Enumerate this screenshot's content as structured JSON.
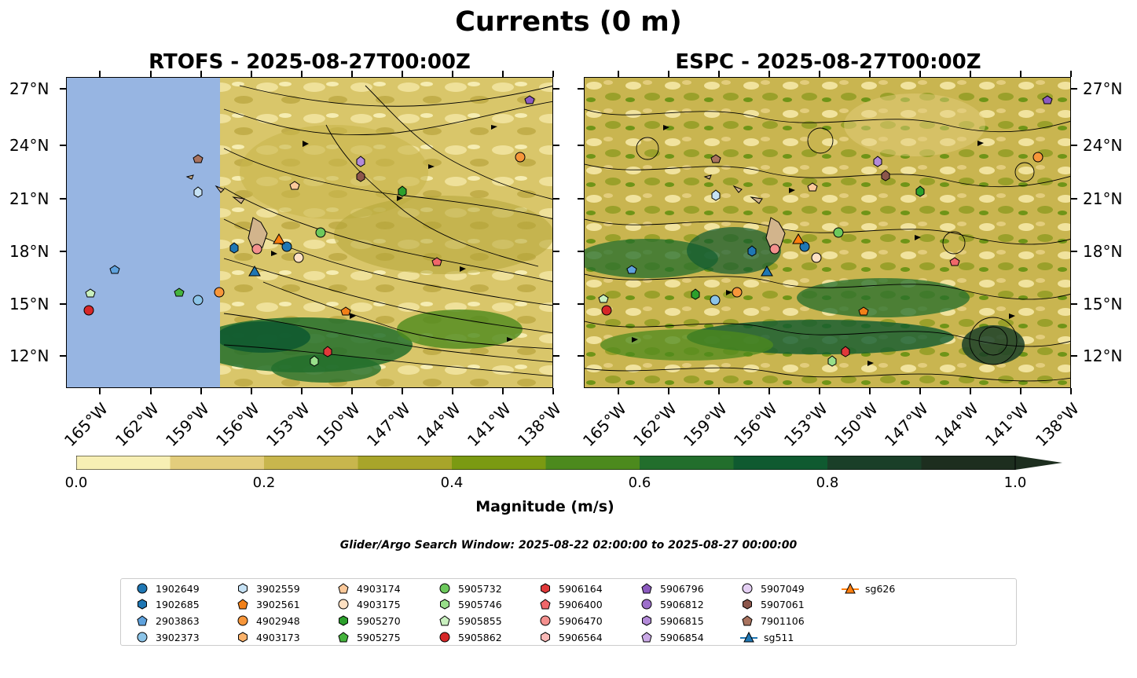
{
  "title": "Currents (0 m)",
  "panels": {
    "left_title": "RTOFS - 2025-08-27T00:00Z",
    "right_title": "ESPC - 2025-08-27T00:00Z"
  },
  "axes": {
    "lat_labels": [
      "27°N",
      "24°N",
      "21°N",
      "18°N",
      "15°N",
      "12°N"
    ],
    "lon_labels": [
      "165°W",
      "162°W",
      "159°W",
      "156°W",
      "153°W",
      "150°W",
      "147°W",
      "144°W",
      "141°W",
      "138°W"
    ]
  },
  "colorbar": {
    "label": "Magnitude (m/s)",
    "ticks": [
      "0.0",
      "0.2",
      "0.4",
      "0.6",
      "0.8",
      "1.0"
    ],
    "colors": [
      "#f7efb4",
      "#e3cd7c",
      "#c8b64d",
      "#a8a52a",
      "#7b9a12",
      "#4c8a1d",
      "#226e2c",
      "#0f5a30",
      "#1a3f28",
      "#1d2e1f"
    ]
  },
  "land_color": "#d2b48c",
  "ocean_masked_color": "#97b5e2",
  "search_window": "Glider/Argo Search Window: 2025-08-22 02:00:00 to 2025-08-27 00:00:00",
  "legend": [
    {
      "label": "1902649",
      "shape": "circle",
      "color": "#1f77b4"
    },
    {
      "label": "1902685",
      "shape": "hexagon",
      "color": "#1f77b4"
    },
    {
      "label": "2903863",
      "shape": "pentagon",
      "color": "#5fa2dd"
    },
    {
      "label": "3902373",
      "shape": "circle",
      "color": "#8cc4e8"
    },
    {
      "label": "3902559",
      "shape": "hexagon",
      "color": "#c6e2f5"
    },
    {
      "label": "3902561",
      "shape": "pentagon",
      "color": "#f28018"
    },
    {
      "label": "4902948",
      "shape": "circle",
      "color": "#f7963a"
    },
    {
      "label": "4903173",
      "shape": "hexagon",
      "color": "#fbb26a"
    },
    {
      "label": "4903174",
      "shape": "pentagon",
      "color": "#fcc99a"
    },
    {
      "label": "4903175",
      "shape": "circle",
      "color": "#fde0c2"
    },
    {
      "label": "5905270",
      "shape": "hexagon",
      "color": "#2ca02c"
    },
    {
      "label": "5905275",
      "shape": "pentagon",
      "color": "#45b33d"
    },
    {
      "label": "5905732",
      "shape": "circle",
      "color": "#6cc95c"
    },
    {
      "label": "5905746",
      "shape": "hexagon",
      "color": "#98df8a"
    },
    {
      "label": "5905855",
      "shape": "pentagon",
      "color": "#c9f0bf"
    },
    {
      "label": "5905862",
      "shape": "circle",
      "color": "#d62728"
    },
    {
      "label": "5906164",
      "shape": "hexagon",
      "color": "#e0393a"
    },
    {
      "label": "5906400",
      "shape": "pentagon",
      "color": "#f0676a"
    },
    {
      "label": "5906470",
      "shape": "circle",
      "color": "#f4908e"
    },
    {
      "label": "5906564",
      "shape": "hexagon",
      "color": "#f9b8b6"
    },
    {
      "label": "5906796",
      "shape": "pentagon",
      "color": "#8c5bbf"
    },
    {
      "label": "5906812",
      "shape": "circle",
      "color": "#9d6fcb"
    },
    {
      "label": "5906815",
      "shape": "hexagon",
      "color": "#b38ad8"
    },
    {
      "label": "5906854",
      "shape": "pentagon",
      "color": "#caa9e6"
    },
    {
      "label": "5907049",
      "shape": "circle",
      "color": "#e4cff3"
    },
    {
      "label": "5907061",
      "shape": "hexagon",
      "color": "#8c564b"
    },
    {
      "label": "7901106",
      "shape": "pentagon",
      "color": "#a9735f"
    },
    {
      "label": "sg511",
      "shape": "triangle",
      "color": "#1f77b4"
    },
    {
      "label": "sg626",
      "shape": "triangle",
      "color": "#ff7f0e"
    }
  ]
}
